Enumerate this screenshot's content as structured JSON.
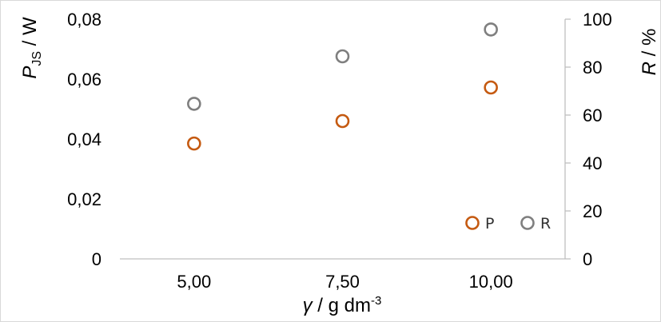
{
  "chart_data": {
    "type": "scatter",
    "categories": [
      "5,00",
      "7,50",
      "10,00"
    ],
    "x": [
      5.0,
      7.5,
      10.0
    ],
    "series": [
      {
        "name": "P",
        "axis": "left",
        "values": [
          0.0385,
          0.046,
          0.0572
        ],
        "color": "#c55a11"
      },
      {
        "name": "R",
        "axis": "right",
        "values": [
          64.7,
          84.5,
          95.7
        ],
        "color": "#7f7f7f"
      }
    ],
    "xlabel": {
      "symbol": "γ",
      "text": " / g dm",
      "sup": "-3"
    },
    "ylabel_left": {
      "symbol": "P",
      "sub": "JS",
      "text": " / W"
    },
    "ylabel_right": {
      "symbol": "R",
      "text": " / %"
    },
    "y_left": {
      "min": 0,
      "max": 0.08,
      "ticks": [
        "0",
        "0,02",
        "0,04",
        "0,06",
        "0,08"
      ]
    },
    "y_right": {
      "min": 0,
      "max": 100,
      "ticks": [
        "0",
        "20",
        "40",
        "60",
        "80",
        "100"
      ]
    },
    "grid": false,
    "legend": {
      "placement": "bottom-right",
      "entries": [
        "P",
        "R"
      ]
    }
  }
}
